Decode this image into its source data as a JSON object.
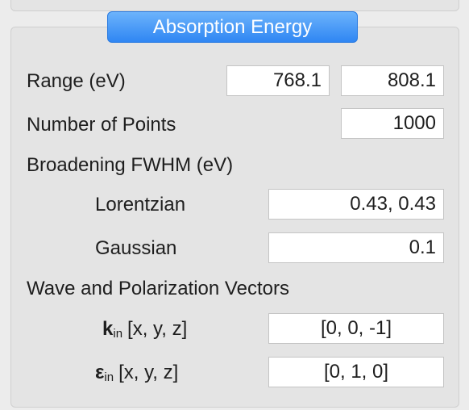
{
  "group": {
    "title": "Absorption Energy"
  },
  "range": {
    "label": "Range (eV)",
    "min": "768.1",
    "max": "808.1"
  },
  "points": {
    "label": "Number of Points",
    "value": "1000"
  },
  "broadening": {
    "label": "Broadening FWHM (eV)",
    "lorentzian_label": "Lorentzian",
    "lorentzian_value": "0.43, 0.43",
    "gaussian_label": "Gaussian",
    "gaussian_value": "0.1"
  },
  "vectors": {
    "label": "Wave and Polarization Vectors",
    "k_symbol": "k",
    "k_sub": "in",
    "k_suffix": "[x, y, z]",
    "k_value": "[0, 0, -1]",
    "e_symbol": "ε",
    "e_sub": "in",
    "e_suffix": "[x, y, z]",
    "e_value": "[0, 1, 0]"
  }
}
